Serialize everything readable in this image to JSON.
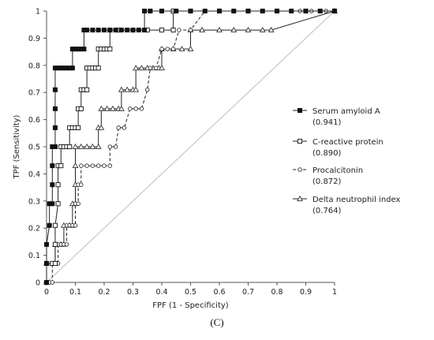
{
  "chart_data": {
    "type": "line",
    "panel_label": "(C)",
    "xlabel": "FPF (1 - Specificity)",
    "ylabel": "TPF (Sensitivity)",
    "xlim": [
      0,
      1
    ],
    "ylim": [
      0,
      1
    ],
    "x_ticks": [
      "0",
      "0.1",
      "0.2",
      "0.3",
      "0.4",
      "0.5",
      "0.6",
      "0.7",
      "0.8",
      "0.9",
      "1"
    ],
    "y_ticks": [
      "0",
      "0.1",
      "0.2",
      "0.3",
      "0.4",
      "0.5",
      "0.6",
      "0.7",
      "0.8",
      "0.9",
      "1"
    ],
    "grid": false,
    "legend_position": "right",
    "reference_line": true,
    "series": [
      {
        "name": "Serum amyloid A",
        "auc": "(0.941)",
        "marker": "filled-square",
        "line": "solid",
        "points": [
          [
            0,
            0
          ],
          [
            0,
            0.07
          ],
          [
            0,
            0.14
          ],
          [
            0.01,
            0.21
          ],
          [
            0.01,
            0.29
          ],
          [
            0.02,
            0.29
          ],
          [
            0.02,
            0.36
          ],
          [
            0.02,
            0.43
          ],
          [
            0.02,
            0.5
          ],
          [
            0.03,
            0.5
          ],
          [
            0.03,
            0.57
          ],
          [
            0.03,
            0.64
          ],
          [
            0.03,
            0.71
          ],
          [
            0.03,
            0.79
          ],
          [
            0.04,
            0.79
          ],
          [
            0.05,
            0.79
          ],
          [
            0.06,
            0.79
          ],
          [
            0.07,
            0.79
          ],
          [
            0.08,
            0.79
          ],
          [
            0.09,
            0.79
          ],
          [
            0.09,
            0.86
          ],
          [
            0.1,
            0.86
          ],
          [
            0.11,
            0.86
          ],
          [
            0.12,
            0.86
          ],
          [
            0.13,
            0.86
          ],
          [
            0.13,
            0.93
          ],
          [
            0.14,
            0.93
          ],
          [
            0.16,
            0.93
          ],
          [
            0.18,
            0.93
          ],
          [
            0.2,
            0.93
          ],
          [
            0.22,
            0.93
          ],
          [
            0.24,
            0.93
          ],
          [
            0.26,
            0.93
          ],
          [
            0.28,
            0.93
          ],
          [
            0.3,
            0.93
          ],
          [
            0.32,
            0.93
          ],
          [
            0.34,
            0.93
          ],
          [
            0.34,
            1
          ],
          [
            0.36,
            1
          ],
          [
            0.4,
            1
          ],
          [
            0.45,
            1
          ],
          [
            0.5,
            1
          ],
          [
            0.55,
            1
          ],
          [
            0.6,
            1
          ],
          [
            0.65,
            1
          ],
          [
            0.7,
            1
          ],
          [
            0.75,
            1
          ],
          [
            0.8,
            1
          ],
          [
            0.85,
            1
          ],
          [
            0.9,
            1
          ],
          [
            0.95,
            1
          ],
          [
            1,
            1
          ]
        ]
      },
      {
        "name": "C-reactive protein",
        "auc": "(0.890)",
        "marker": "open-square",
        "line": "solid",
        "points": [
          [
            0,
            0
          ],
          [
            0,
            0.07
          ],
          [
            0.02,
            0.07
          ],
          [
            0.03,
            0.07
          ],
          [
            0.03,
            0.14
          ],
          [
            0.03,
            0.21
          ],
          [
            0.04,
            0.29
          ],
          [
            0.04,
            0.36
          ],
          [
            0.04,
            0.43
          ],
          [
            0.05,
            0.43
          ],
          [
            0.05,
            0.5
          ],
          [
            0.06,
            0.5
          ],
          [
            0.07,
            0.5
          ],
          [
            0.08,
            0.5
          ],
          [
            0.08,
            0.57
          ],
          [
            0.09,
            0.57
          ],
          [
            0.1,
            0.57
          ],
          [
            0.11,
            0.57
          ],
          [
            0.11,
            0.64
          ],
          [
            0.12,
            0.64
          ],
          [
            0.12,
            0.71
          ],
          [
            0.13,
            0.71
          ],
          [
            0.14,
            0.71
          ],
          [
            0.14,
            0.79
          ],
          [
            0.15,
            0.79
          ],
          [
            0.16,
            0.79
          ],
          [
            0.17,
            0.79
          ],
          [
            0.18,
            0.79
          ],
          [
            0.18,
            0.86
          ],
          [
            0.19,
            0.86
          ],
          [
            0.2,
            0.86
          ],
          [
            0.21,
            0.86
          ],
          [
            0.22,
            0.86
          ],
          [
            0.22,
            0.93
          ],
          [
            0.25,
            0.93
          ],
          [
            0.3,
            0.93
          ],
          [
            0.35,
            0.93
          ],
          [
            0.4,
            0.93
          ],
          [
            0.44,
            0.93
          ],
          [
            0.44,
            1
          ],
          [
            0.5,
            1
          ],
          [
            0.6,
            1
          ],
          [
            0.7,
            1
          ],
          [
            0.8,
            1
          ],
          [
            0.9,
            1
          ],
          [
            1,
            1
          ]
        ]
      },
      {
        "name": "Procalcitonin",
        "auc": "(0.872)",
        "marker": "open-circle",
        "line": "dashed",
        "points": [
          [
            0,
            0
          ],
          [
            0.01,
            0
          ],
          [
            0.02,
            0
          ],
          [
            0.02,
            0.07
          ],
          [
            0.03,
            0.07
          ],
          [
            0.04,
            0.07
          ],
          [
            0.04,
            0.14
          ],
          [
            0.05,
            0.14
          ],
          [
            0.06,
            0.14
          ],
          [
            0.07,
            0.14
          ],
          [
            0.07,
            0.21
          ],
          [
            0.08,
            0.21
          ],
          [
            0.09,
            0.21
          ],
          [
            0.1,
            0.21
          ],
          [
            0.1,
            0.29
          ],
          [
            0.11,
            0.29
          ],
          [
            0.11,
            0.36
          ],
          [
            0.12,
            0.36
          ],
          [
            0.12,
            0.43
          ],
          [
            0.14,
            0.43
          ],
          [
            0.16,
            0.43
          ],
          [
            0.18,
            0.43
          ],
          [
            0.2,
            0.43
          ],
          [
            0.22,
            0.43
          ],
          [
            0.22,
            0.5
          ],
          [
            0.24,
            0.5
          ],
          [
            0.25,
            0.57
          ],
          [
            0.27,
            0.57
          ],
          [
            0.29,
            0.64
          ],
          [
            0.31,
            0.64
          ],
          [
            0.33,
            0.64
          ],
          [
            0.35,
            0.71
          ],
          [
            0.36,
            0.79
          ],
          [
            0.38,
            0.79
          ],
          [
            0.4,
            0.86
          ],
          [
            0.42,
            0.86
          ],
          [
            0.44,
            0.86
          ],
          [
            0.46,
            0.93
          ],
          [
            0.5,
            0.93
          ],
          [
            0.55,
            1
          ],
          [
            0.6,
            1
          ],
          [
            0.7,
            1
          ],
          [
            0.8,
            1
          ],
          [
            0.88,
            1
          ],
          [
            0.9,
            1
          ],
          [
            0.92,
            1
          ],
          [
            0.95,
            1
          ],
          [
            0.97,
            1
          ],
          [
            1,
            1
          ]
        ]
      },
      {
        "name": "Delta neutrophil index",
        "auc": "(0.764)",
        "marker": "open-triangle",
        "line": "solid",
        "points": [
          [
            0,
            0
          ],
          [
            0,
            0.07
          ],
          [
            0.03,
            0.07
          ],
          [
            0.03,
            0.14
          ],
          [
            0.05,
            0.14
          ],
          [
            0.06,
            0.14
          ],
          [
            0.06,
            0.21
          ],
          [
            0.08,
            0.21
          ],
          [
            0.09,
            0.21
          ],
          [
            0.09,
            0.29
          ],
          [
            0.1,
            0.29
          ],
          [
            0.1,
            0.36
          ],
          [
            0.1,
            0.43
          ],
          [
            0.1,
            0.5
          ],
          [
            0.12,
            0.5
          ],
          [
            0.14,
            0.5
          ],
          [
            0.16,
            0.5
          ],
          [
            0.18,
            0.5
          ],
          [
            0.18,
            0.57
          ],
          [
            0.19,
            0.57
          ],
          [
            0.19,
            0.64
          ],
          [
            0.21,
            0.64
          ],
          [
            0.23,
            0.64
          ],
          [
            0.25,
            0.64
          ],
          [
            0.26,
            0.64
          ],
          [
            0.26,
            0.71
          ],
          [
            0.28,
            0.71
          ],
          [
            0.3,
            0.71
          ],
          [
            0.31,
            0.71
          ],
          [
            0.31,
            0.79
          ],
          [
            0.33,
            0.79
          ],
          [
            0.35,
            0.79
          ],
          [
            0.37,
            0.79
          ],
          [
            0.39,
            0.79
          ],
          [
            0.4,
            0.79
          ],
          [
            0.4,
            0.86
          ],
          [
            0.44,
            0.86
          ],
          [
            0.47,
            0.86
          ],
          [
            0.5,
            0.86
          ],
          [
            0.5,
            0.93
          ],
          [
            0.54,
            0.93
          ],
          [
            0.6,
            0.93
          ],
          [
            0.65,
            0.93
          ],
          [
            0.7,
            0.93
          ],
          [
            0.75,
            0.93
          ],
          [
            0.78,
            0.93
          ],
          [
            1,
            1
          ]
        ]
      }
    ]
  }
}
